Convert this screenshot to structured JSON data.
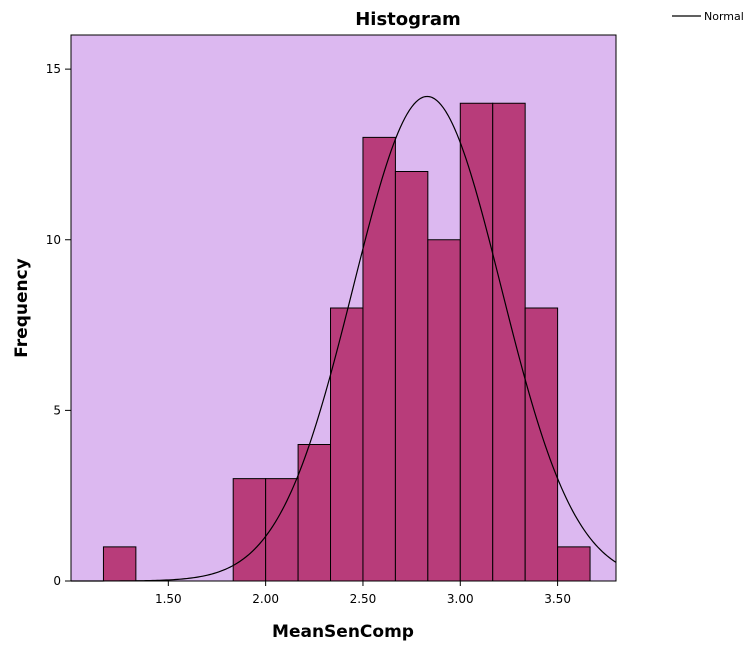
{
  "chart_data": {
    "type": "bar",
    "title": "Histogram",
    "xlabel": "MeanSenComp",
    "ylabel": "Frequency",
    "bin_width": 0.1667,
    "bins": [
      {
        "start": 1.1667,
        "end": 1.3333,
        "count": 1
      },
      {
        "start": 1.8333,
        "end": 2.0,
        "count": 3
      },
      {
        "start": 2.0,
        "end": 2.1667,
        "count": 3
      },
      {
        "start": 2.1667,
        "end": 2.3333,
        "count": 4
      },
      {
        "start": 2.3333,
        "end": 2.5,
        "count": 8
      },
      {
        "start": 2.5,
        "end": 2.6667,
        "count": 13
      },
      {
        "start": 2.6667,
        "end": 2.8333,
        "count": 12
      },
      {
        "start": 2.8333,
        "end": 3.0,
        "count": 10
      },
      {
        "start": 3.0,
        "end": 3.1667,
        "count": 14
      },
      {
        "start": 3.1667,
        "end": 3.3333,
        "count": 14
      },
      {
        "start": 3.3333,
        "end": 3.5,
        "count": 8
      },
      {
        "start": 3.5,
        "end": 3.6667,
        "count": 1
      }
    ],
    "xlim": [
      1.0,
      3.8
    ],
    "ylim": [
      0,
      16
    ],
    "x_ticks": [
      1.5,
      2.0,
      2.5,
      3.0,
      3.5
    ],
    "x_tick_labels": [
      "1.50",
      "2.00",
      "2.50",
      "3.00",
      "3.50"
    ],
    "y_ticks": [
      0,
      5,
      10,
      15
    ],
    "y_tick_labels": [
      "0",
      "5",
      "10",
      "15"
    ],
    "normal_curve": {
      "mean": 2.83,
      "sd": 0.38,
      "peak": 14.2
    },
    "legend": {
      "placement": "top-right",
      "entries": [
        {
          "label": "Normal",
          "style": "line"
        }
      ]
    },
    "grid": false,
    "colors": {
      "plot_background": "#dcb8f0",
      "bar_fill": "#b83c7a",
      "bar_stroke": "#000000",
      "curve": "#000000"
    }
  }
}
